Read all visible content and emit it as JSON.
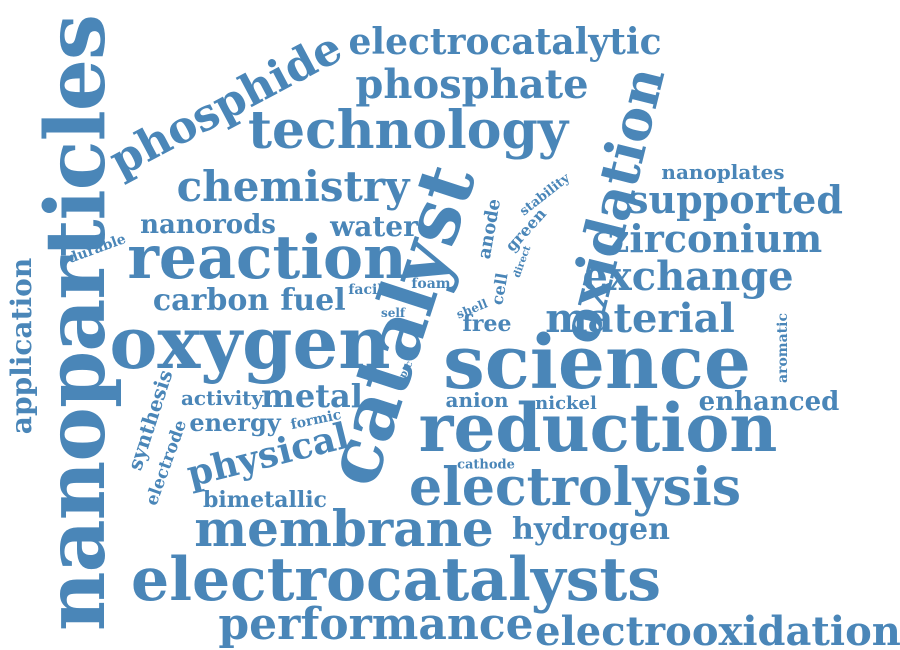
{
  "style": {
    "word_color": "#4a86b8",
    "background": "#ffffff"
  },
  "words": [
    {
      "key": "nanoparticles",
      "text": "nanoparticles"
    },
    {
      "key": "catalyst",
      "text": "catalyst"
    },
    {
      "key": "oxidation",
      "text": "oxidation"
    },
    {
      "key": "oxygen",
      "text": "oxygen"
    },
    {
      "key": "science",
      "text": "science"
    },
    {
      "key": "reduction",
      "text": "reduction"
    },
    {
      "key": "electrocatalysts",
      "text": "electrocatalysts"
    },
    {
      "key": "reaction",
      "text": "reaction"
    },
    {
      "key": "technology",
      "text": "technology"
    },
    {
      "key": "phosphide",
      "text": "phosphide"
    },
    {
      "key": "electrocatalytic",
      "text": "electrocatalytic"
    },
    {
      "key": "phosphate",
      "text": "phosphate"
    },
    {
      "key": "chemistry",
      "text": "chemistry"
    },
    {
      "key": "electrolysis",
      "text": "electrolysis"
    },
    {
      "key": "membrane",
      "text": "membrane"
    },
    {
      "key": "performance",
      "text": "performance"
    },
    {
      "key": "electrooxidation",
      "text": "electrooxidation"
    },
    {
      "key": "exchange",
      "text": "exchange"
    },
    {
      "key": "supported",
      "text": "supported"
    },
    {
      "key": "zirconium",
      "text": "zirconium"
    },
    {
      "key": "material",
      "text": "material"
    },
    {
      "key": "hydrogen",
      "text": "hydrogen"
    },
    {
      "key": "physical",
      "text": "physical"
    },
    {
      "key": "metal",
      "text": "metal"
    },
    {
      "key": "carbon",
      "text": "carbon"
    },
    {
      "key": "fuel",
      "text": "fuel"
    },
    {
      "key": "nanorods",
      "text": "nanorods"
    },
    {
      "key": "water",
      "text": "water"
    },
    {
      "key": "enhanced",
      "text": "enhanced"
    },
    {
      "key": "energy",
      "text": "energy"
    },
    {
      "key": "bimetallic",
      "text": "bimetallic"
    },
    {
      "key": "activity",
      "text": "activity"
    },
    {
      "key": "anion",
      "text": "anion"
    },
    {
      "key": "nickel",
      "text": "nickel"
    },
    {
      "key": "free",
      "text": "free"
    },
    {
      "key": "application",
      "text": "application"
    },
    {
      "key": "synthesis",
      "text": "synthesis"
    },
    {
      "key": "electrode",
      "text": "electrode"
    },
    {
      "key": "nanoplates",
      "text": "nanoplates"
    },
    {
      "key": "durable",
      "text": "durable"
    },
    {
      "key": "anode",
      "text": "anode"
    },
    {
      "key": "green",
      "text": "green"
    },
    {
      "key": "stability",
      "text": "stability"
    },
    {
      "key": "cell",
      "text": "cell"
    },
    {
      "key": "direct",
      "text": "direct"
    },
    {
      "key": "facile",
      "text": "facile"
    },
    {
      "key": "foam",
      "text": "foam"
    },
    {
      "key": "self",
      "text": "self"
    },
    {
      "key": "shell",
      "text": "shell"
    },
    {
      "key": "ptc",
      "text": "ptc"
    },
    {
      "key": "formic",
      "text": "formic"
    },
    {
      "key": "cathode",
      "text": "cathode"
    },
    {
      "key": "aromatic",
      "text": "aromatic"
    }
  ]
}
